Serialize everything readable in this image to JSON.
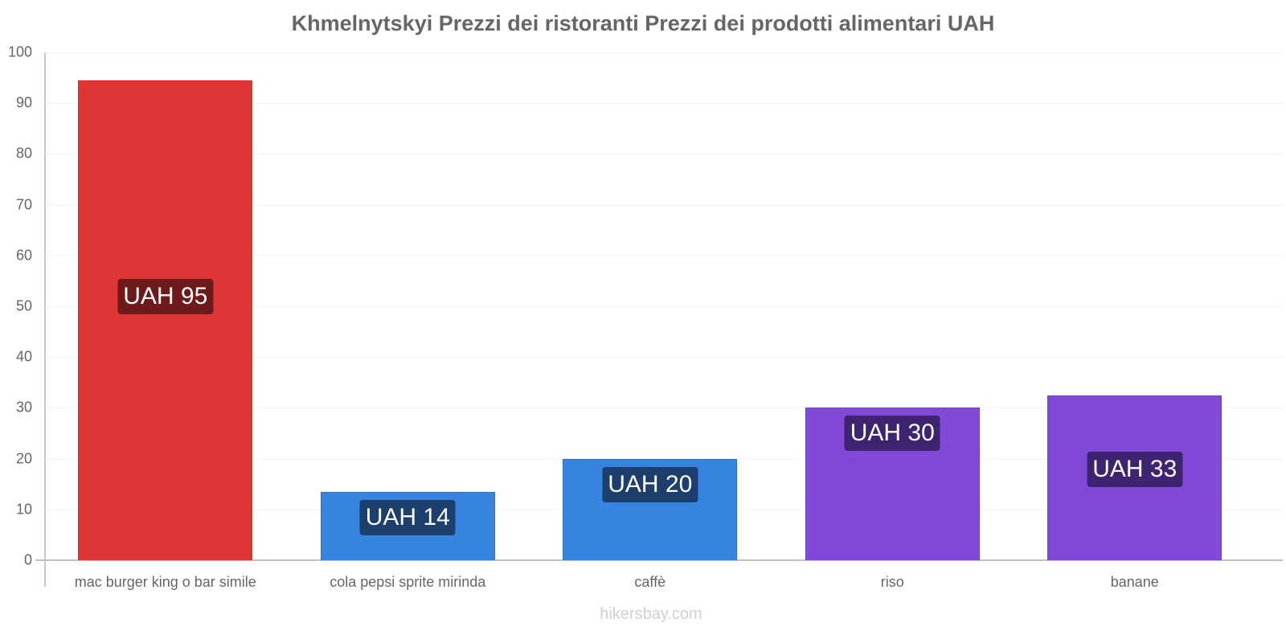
{
  "title": "Khmelnytskyi Prezzi dei ristoranti Prezzi dei prodotti alimentari UAH",
  "watermark": "hikersbay.com",
  "y_axis": {
    "ticks": [
      "0",
      "10",
      "20",
      "30",
      "40",
      "50",
      "60",
      "70",
      "80",
      "90",
      "100"
    ]
  },
  "bars": [
    {
      "category": "mac burger king o bar simile",
      "label": "UAH 95",
      "value": 94.5,
      "color": "#e03535",
      "border": "#d23030",
      "label_bg": "#6e1a1a"
    },
    {
      "category": "cola pepsi sprite mirinda",
      "label": "UAH 14",
      "value": 13.5,
      "color": "#3683e0",
      "border": "#2f74c8",
      "label_bg": "#1c3f6e"
    },
    {
      "category": "caffè",
      "label": "UAH 20",
      "value": 20,
      "color": "#3683e0",
      "border": "#2f74c8",
      "label_bg": "#1c3f6e"
    },
    {
      "category": "riso",
      "label": "UAH 30",
      "value": 30,
      "color": "#8049d8",
      "border": "#7440c8",
      "label_bg": "#3e2470"
    },
    {
      "category": "banane",
      "label": "UAH 33",
      "value": 32.5,
      "color": "#8049d8",
      "border": "#7440c8",
      "label_bg": "#3e2470"
    }
  ],
  "chart_data": {
    "type": "bar",
    "title": "Khmelnytskyi Prezzi dei ristoranti Prezzi dei prodotti alimentari UAH",
    "categories": [
      "mac burger king o bar simile",
      "cola pepsi sprite mirinda",
      "caffè",
      "riso",
      "banane"
    ],
    "values": [
      94.5,
      13.5,
      20,
      30,
      32.5
    ],
    "data_labels": [
      "UAH 95",
      "UAH 14",
      "UAH 20",
      "UAH 30",
      "UAH 33"
    ],
    "colors": [
      "#e03535",
      "#3683e0",
      "#3683e0",
      "#8049d8",
      "#8049d8"
    ],
    "xlabel": "",
    "ylabel": "",
    "ylim": [
      0,
      100
    ],
    "yticks": [
      0,
      10,
      20,
      30,
      40,
      50,
      60,
      70,
      80,
      90,
      100
    ],
    "grid": true,
    "legend": "none"
  }
}
